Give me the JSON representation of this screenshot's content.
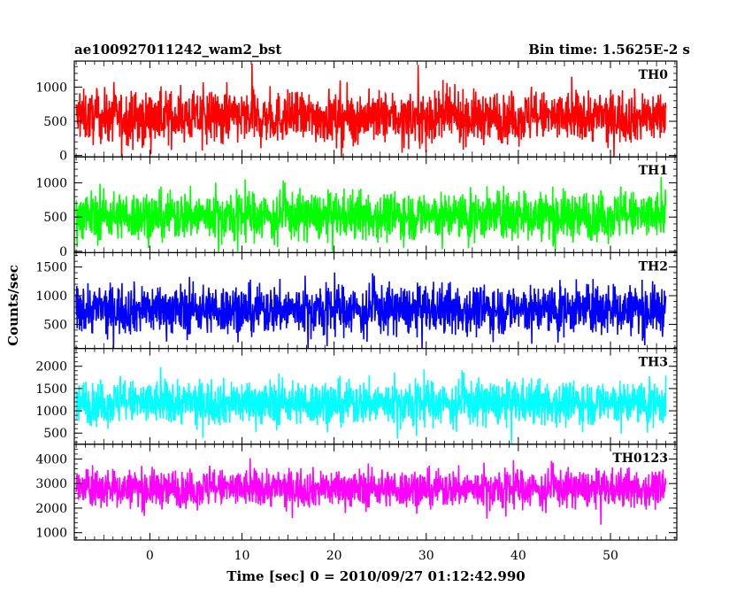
{
  "header": {
    "title": "ae100927011242_wam2_bst",
    "bin_time": "Bin time: 1.5625E-2 s"
  },
  "axes": {
    "xlabel": "Time [sec] 0 = 2010/09/27 01:12:42.990",
    "ylabel": "Counts/sec"
  },
  "chart_data": {
    "type": "line",
    "title": "ae100927011242_wam2_bst",
    "subtitle": "Bin time: 1.5625E-2 s",
    "xlabel": "Time [sec] 0 = 2010/09/27 01:12:42.990",
    "ylabel": "Counts/sec",
    "xlim": [
      -8.2,
      57.2
    ],
    "x_range": [
      -8,
      56
    ],
    "bin_time": 0.015625,
    "x_ticks": [
      0,
      10,
      20,
      30,
      40,
      50
    ],
    "grid": false,
    "legend": "none",
    "panels": [
      {
        "name": "TH0",
        "color": "#ff0000",
        "ylim": [
          -20,
          1380
        ],
        "yticks": [
          0,
          500,
          1000
        ],
        "base": 500,
        "spread": 480,
        "mean": 560
      },
      {
        "name": "TH1",
        "color": "#00ff00",
        "ylim": [
          -20,
          1380
        ],
        "yticks": [
          0,
          500,
          1000
        ],
        "base": 460,
        "spread": 460,
        "mean": 520
      },
      {
        "name": "TH2",
        "color": "#0000ff",
        "ylim": [
          80,
          1750
        ],
        "yticks": [
          500,
          1000,
          1500
        ],
        "base": 700,
        "spread": 560,
        "mean": 760
      },
      {
        "name": "TH3",
        "color": "#00ffff",
        "ylim": [
          250,
          2400
        ],
        "yticks": [
          500,
          1000,
          1500,
          2000
        ],
        "base": 1100,
        "spread": 650,
        "mean": 1180
      },
      {
        "name": "TH0123",
        "color": "#ff00ff",
        "ylim": [
          700,
          4600
        ],
        "yticks": [
          1000,
          2000,
          3000,
          4000
        ],
        "base": 2700,
        "spread": 1000,
        "mean": 2800
      }
    ]
  }
}
